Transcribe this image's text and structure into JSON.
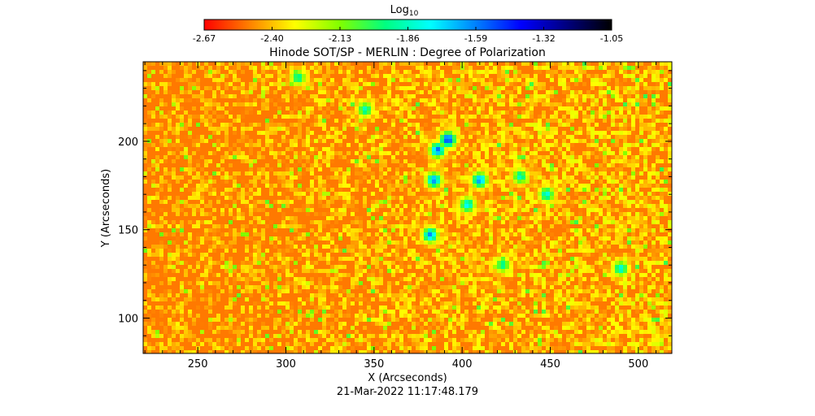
{
  "chart_data": {
    "type": "heatmap",
    "title": "Hinode SOT/SP - MERLIN : Degree of Polarization",
    "xlabel": "X (Arcseconds)",
    "ylabel": "Y (Arcseconds)",
    "timestamp": "21-Mar-2022 11:17:48.179",
    "colorbar": {
      "label_base": "Log",
      "label_sub": "10",
      "ticks": [
        "-2.67",
        "-2.40",
        "-2.13",
        "-1.86",
        "-1.59",
        "-1.32",
        "-1.05"
      ],
      "range": [
        -2.67,
        -1.05
      ],
      "colormap": [
        "#ff0000",
        "#ff8000",
        "#ffff00",
        "#80ff00",
        "#00ff80",
        "#00ffff",
        "#0080ff",
        "#0000ff",
        "#000080",
        "#000000"
      ]
    },
    "xlim": [
      219,
      519
    ],
    "ylim": [
      80,
      245
    ],
    "xticks": [
      {
        "value": 250,
        "label": "250"
      },
      {
        "value": 300,
        "label": "300"
      },
      {
        "value": 350,
        "label": "350"
      },
      {
        "value": 400,
        "label": "400"
      },
      {
        "value": 450,
        "label": "450"
      },
      {
        "value": 500,
        "label": "500"
      }
    ],
    "yticks": [
      {
        "value": 100,
        "label": "100"
      },
      {
        "value": 150,
        "label": "150"
      },
      {
        "value": 200,
        "label": "200"
      }
    ],
    "background_level": -2.5,
    "features": [
      {
        "x": 392,
        "y": 201,
        "level": -1.45
      },
      {
        "x": 386,
        "y": 195,
        "level": -1.55
      },
      {
        "x": 384,
        "y": 178,
        "level": -1.6
      },
      {
        "x": 410,
        "y": 178,
        "level": -1.6
      },
      {
        "x": 382,
        "y": 147,
        "level": -1.6
      },
      {
        "x": 403,
        "y": 164,
        "level": -1.75
      },
      {
        "x": 448,
        "y": 170,
        "level": -1.8
      },
      {
        "x": 433,
        "y": 180,
        "level": -1.85
      },
      {
        "x": 345,
        "y": 218,
        "level": -1.85
      },
      {
        "x": 307,
        "y": 236,
        "level": -1.9
      },
      {
        "x": 490,
        "y": 128,
        "level": -1.8
      },
      {
        "x": 423,
        "y": 130,
        "level": -1.9
      }
    ]
  }
}
